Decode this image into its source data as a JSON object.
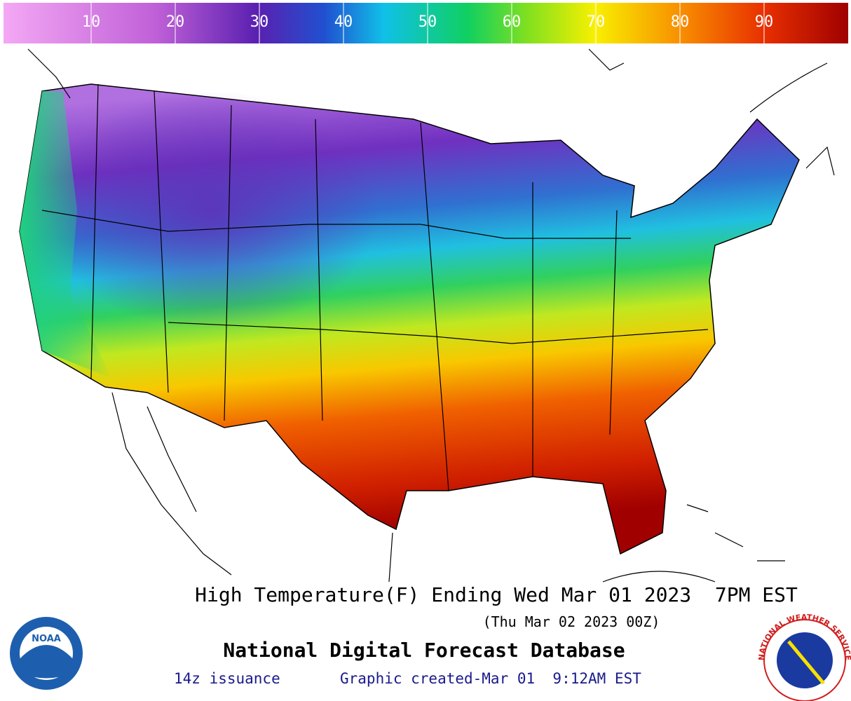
{
  "legend": {
    "ticks": [
      10,
      20,
      30,
      40,
      50,
      60,
      70,
      80,
      90
    ]
  },
  "title": "High Temperature(F) Ending Wed Mar 01 2023  7PM EST",
  "subtitle": "(Thu Mar 02 2023 00Z)",
  "database": "National Digital Forecast Database",
  "issuance": "14z issuance",
  "created": "Graphic created-Mar 01  9:12AM EST",
  "logos": {
    "noaa": "NOAA",
    "nws": "NATIONAL WEATHER SERVICE"
  }
}
